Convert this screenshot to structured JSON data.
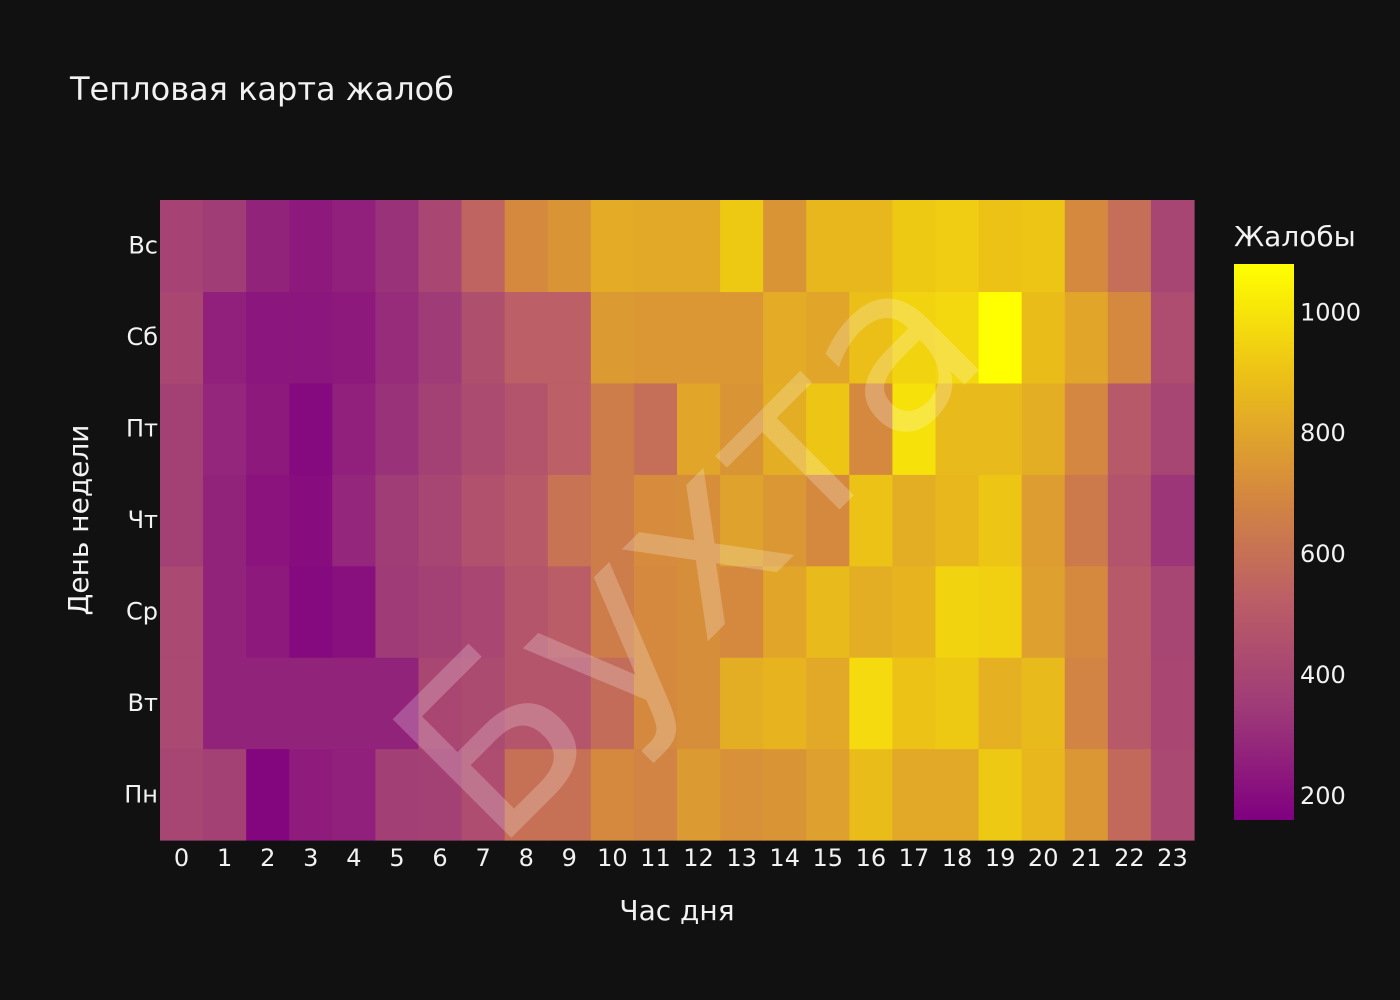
{
  "chart_data": {
    "type": "heatmap",
    "title": "Тепловая карта жалоб",
    "xlabel": "Час дня",
    "ylabel": "День недели",
    "x": [
      "0",
      "1",
      "2",
      "3",
      "4",
      "5",
      "6",
      "7",
      "8",
      "9",
      "10",
      "11",
      "12",
      "13",
      "14",
      "15",
      "16",
      "17",
      "18",
      "19",
      "20",
      "21",
      "22",
      "23"
    ],
    "y": [
      "Пн",
      "Вт",
      "Ср",
      "Чт",
      "Пт",
      "Сб",
      "Вс"
    ],
    "z": [
      [
        400,
        380,
        180,
        250,
        260,
        370,
        380,
        440,
        600,
        600,
        700,
        680,
        760,
        730,
        740,
        780,
        880,
        810,
        810,
        920,
        860,
        750,
        570,
        420
      ],
      [
        420,
        270,
        270,
        270,
        270,
        270,
        410,
        430,
        480,
        480,
        580,
        700,
        720,
        830,
        850,
        810,
        970,
        900,
        920,
        840,
        870,
        680,
        500,
        410
      ],
      [
        420,
        270,
        240,
        190,
        210,
        350,
        380,
        410,
        480,
        520,
        650,
        700,
        720,
        700,
        800,
        870,
        830,
        850,
        950,
        940,
        780,
        700,
        500,
        400
      ],
      [
        380,
        270,
        220,
        200,
        280,
        360,
        400,
        460,
        500,
        610,
        650,
        710,
        720,
        790,
        750,
        700,
        900,
        830,
        860,
        910,
        770,
        640,
        470,
        330
      ],
      [
        380,
        280,
        240,
        190,
        260,
        320,
        380,
        430,
        470,
        530,
        650,
        590,
        800,
        740,
        830,
        910,
        700,
        990,
        870,
        870,
        830,
        690,
        500,
        400
      ],
      [
        410,
        260,
        230,
        230,
        240,
        300,
        350,
        450,
        530,
        530,
        760,
        750,
        750,
        750,
        820,
        800,
        890,
        950,
        960,
        1080,
        880,
        800,
        700,
        440
      ],
      [
        390,
        360,
        270,
        240,
        260,
        320,
        410,
        550,
        700,
        740,
        820,
        810,
        810,
        920,
        740,
        860,
        860,
        920,
        930,
        900,
        910,
        700,
        590,
        400
      ]
    ],
    "zmin": 160,
    "zmax": 1080,
    "colorscale": [
      "#800080",
      "#9e3a78",
      "#bc5f66",
      "#d68c3c",
      "#ecc117",
      "#ffff00"
    ],
    "colorbar": {
      "title": "Жалобы",
      "tickvals": [
        200,
        400,
        600,
        800,
        1000
      ]
    },
    "watermark": "Бухта",
    "background": "#111111"
  }
}
